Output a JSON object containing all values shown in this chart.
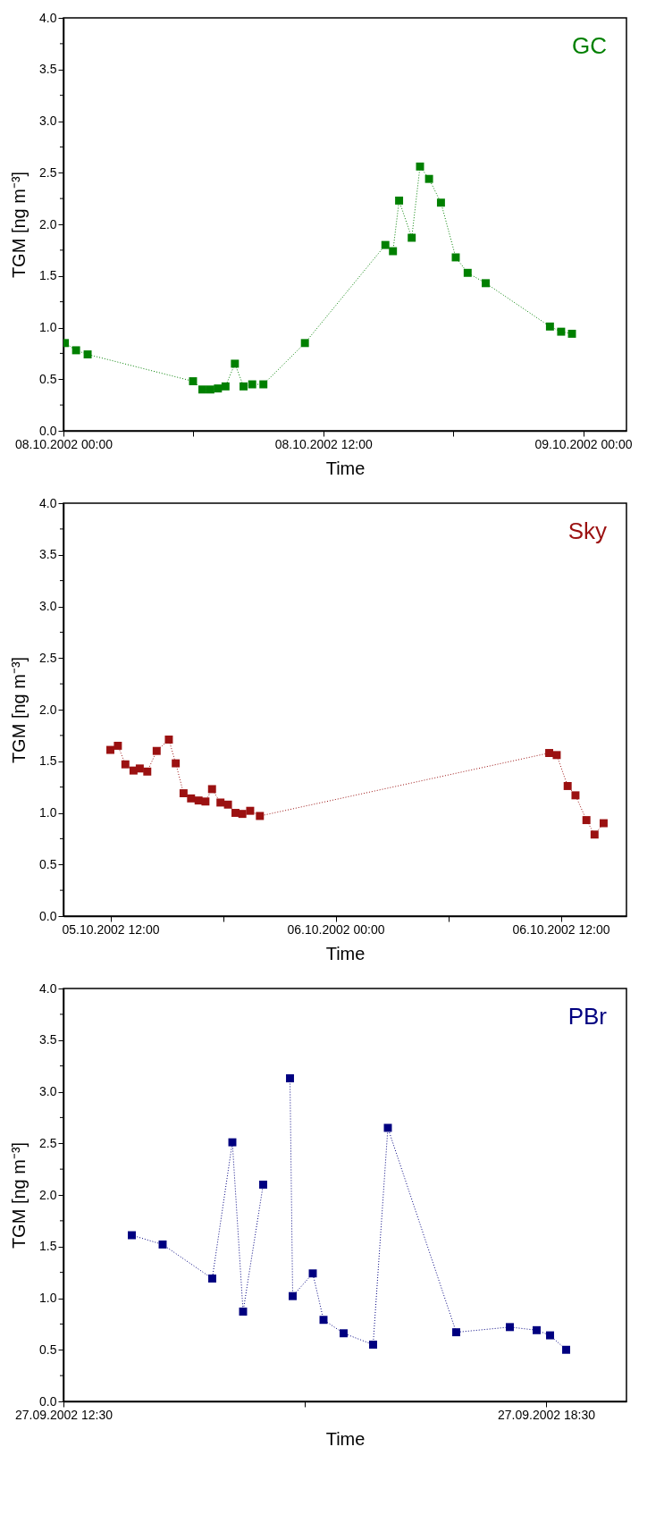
{
  "chart_data": [
    {
      "type": "line",
      "marker": "square",
      "line_style": "dotted",
      "legend": "top right",
      "xlabel": "Time",
      "ylabel": "TGM [ng m⁻³]",
      "xlim": [
        "2002-10-08T00:00",
        "2002-10-09T02:00"
      ],
      "xticks": [
        {
          "value": "2002-10-08T00:00",
          "label": "08.10.2002 00:00"
        },
        {
          "value": "2002-10-08T06:00",
          "label": null
        },
        {
          "value": "2002-10-08T12:00",
          "label": "08.10.2002 12:00"
        },
        {
          "value": "2002-10-08T18:00",
          "label": null
        },
        {
          "value": "2002-10-09T00:00",
          "label": "09.10.2002 00:00"
        }
      ],
      "ylim": [
        0,
        4
      ],
      "yticks": [
        {
          "value": 0,
          "label": "0.0"
        },
        {
          "value": 0.25,
          "label": null
        },
        0.5,
        {
          "value": 0.75,
          "label": null
        },
        {
          "value": 1,
          "label": "1.0"
        },
        {
          "value": 1.25,
          "label": null
        },
        1.5,
        {
          "value": 1.75,
          "label": null
        },
        {
          "value": 2,
          "label": "2.0"
        },
        {
          "value": 2.25,
          "label": null
        },
        2.5,
        {
          "value": 2.75,
          "label": null
        },
        {
          "value": 3,
          "label": "3.0"
        },
        {
          "value": 3.25,
          "label": null
        },
        3.5,
        {
          "value": 3.75,
          "label": null
        },
        {
          "value": 4,
          "label": "4.0"
        }
      ],
      "series": [
        {
          "name": "GC",
          "color": "#008000",
          "x": [
            "2002-10-08T00:04",
            "2002-10-08T00:35",
            "2002-10-08T01:07",
            "2002-10-08T05:59",
            "2002-10-08T06:25",
            "2002-10-08T06:47",
            "2002-10-08T07:08",
            "2002-10-08T07:29",
            "2002-10-08T07:55",
            "2002-10-08T08:19",
            "2002-10-08T08:43",
            "2002-10-08T09:14",
            "2002-10-08T11:09",
            "2002-10-08T14:52",
            "2002-10-08T15:13",
            "2002-10-08T15:30",
            "2002-10-08T16:05",
            "2002-10-08T16:28",
            "2002-10-08T16:53",
            "2002-10-08T17:26",
            "2002-10-08T18:07",
            "2002-10-08T18:40",
            "2002-10-08T19:30",
            "2002-10-08T22:28",
            "2002-10-08T22:59",
            "2002-10-08T23:29"
          ],
          "values": [
            0.85,
            0.78,
            0.74,
            0.48,
            0.4,
            0.4,
            0.41,
            0.43,
            0.65,
            0.43,
            0.45,
            0.45,
            0.85,
            1.8,
            1.74,
            2.23,
            1.87,
            2.56,
            2.44,
            2.21,
            1.68,
            1.53,
            1.43,
            1.01,
            0.96,
            0.94
          ]
        }
      ]
    },
    {
      "type": "line",
      "marker": "square",
      "line_style": "dotted",
      "legend": "top right",
      "xlabel": "Time",
      "ylabel": "TGM [ng m⁻³]",
      "xlim": [
        "2002-10-05T09:30",
        "2002-10-06T15:30"
      ],
      "xticks": [
        {
          "value": "2002-10-05T12:00",
          "label": "05.10.2002 12:00"
        },
        {
          "value": "2002-10-05T18:00",
          "label": null
        },
        {
          "value": "2002-10-06T00:00",
          "label": "06.10.2002 00:00"
        },
        {
          "value": "2002-10-06T06:00",
          "label": null
        },
        {
          "value": "2002-10-06T12:00",
          "label": "06.10.2002 12:00"
        }
      ],
      "ylim": [
        0,
        4
      ],
      "yticks": [
        {
          "value": 0,
          "label": "0.0"
        },
        {
          "value": 0.25,
          "label": null
        },
        0.5,
        {
          "value": 0.75,
          "label": null
        },
        {
          "value": 1,
          "label": "1.0"
        },
        {
          "value": 1.25,
          "label": null
        },
        1.5,
        {
          "value": 1.75,
          "label": null
        },
        {
          "value": 2,
          "label": "2.0"
        },
        {
          "value": 2.25,
          "label": null
        },
        2.5,
        {
          "value": 2.75,
          "label": null
        },
        {
          "value": 3,
          "label": "3.0"
        },
        {
          "value": 3.25,
          "label": null
        },
        3.5,
        {
          "value": 3.75,
          "label": null
        },
        {
          "value": 4,
          "label": "4.0"
        }
      ],
      "series": [
        {
          "name": "Sky",
          "color": "#9b1111",
          "x": [
            "2002-10-05T12:00",
            "2002-10-05T12:24",
            "2002-10-05T12:48",
            "2002-10-05T13:14",
            "2002-10-05T13:34",
            "2002-10-05T13:58",
            "2002-10-05T14:28",
            "2002-10-05T15:07",
            "2002-10-05T15:29",
            "2002-10-05T15:54",
            "2002-10-05T16:18",
            "2002-10-05T16:42",
            "2002-10-05T17:04",
            "2002-10-05T17:25",
            "2002-10-05T17:52",
            "2002-10-05T18:16",
            "2002-10-05T18:40",
            "2002-10-05T19:02",
            "2002-10-05T19:27",
            "2002-10-05T19:58",
            "2002-10-06T11:23",
            "2002-10-06T11:47",
            "2002-10-06T12:22",
            "2002-10-06T12:47",
            "2002-10-06T13:22",
            "2002-10-06T13:48",
            "2002-10-06T14:17"
          ],
          "values": [
            1.61,
            1.65,
            1.47,
            1.41,
            1.43,
            1.4,
            1.6,
            1.71,
            1.48,
            1.19,
            1.14,
            1.12,
            1.11,
            1.23,
            1.1,
            1.08,
            1.0,
            0.99,
            1.02,
            0.97,
            1.58,
            1.56,
            1.26,
            1.17,
            0.93,
            0.79,
            0.9
          ]
        }
      ]
    },
    {
      "type": "line",
      "marker": "square",
      "line_style": "dotted",
      "legend": "top right",
      "xlabel": "Time",
      "ylabel": "TGM [ng m⁻³]",
      "xlim": [
        "2002-09-27T12:30",
        "2002-09-27T19:30"
      ],
      "xticks": [
        {
          "value": "2002-09-27T12:30",
          "label": "27.09.2002 12:30"
        },
        {
          "value": "2002-09-27T15:30",
          "label": null
        },
        {
          "value": "2002-09-27T18:30",
          "label": "27.09.2002 18:30"
        }
      ],
      "ylim": [
        0,
        4
      ],
      "yticks": [
        {
          "value": 0,
          "label": "0.0"
        },
        {
          "value": 0.25,
          "label": null
        },
        0.5,
        {
          "value": 0.75,
          "label": null
        },
        {
          "value": 1,
          "label": "1.0"
        },
        {
          "value": 1.25,
          "label": null
        },
        1.5,
        {
          "value": 1.75,
          "label": null
        },
        {
          "value": 2,
          "label": "2.0"
        },
        {
          "value": 2.25,
          "label": null
        },
        2.5,
        {
          "value": 2.75,
          "label": null
        },
        {
          "value": 3,
          "label": "3.0"
        },
        {
          "value": 3.25,
          "label": null
        },
        3.5,
        {
          "value": 3.75,
          "label": null
        },
        {
          "value": 4,
          "label": "4.0"
        }
      ],
      "series": [
        {
          "name": "PBr",
          "color": "#000080",
          "x": [
            "2002-09-27T13:21",
            "2002-09-27T13:44",
            "2002-09-27T14:21",
            "2002-09-27T14:36",
            "2002-09-27T14:44",
            "2002-09-27T14:59",
            "2002-09-27T15:06",
            "2002-09-27T15:19",
            "2002-09-27T15:21",
            "2002-09-27T15:36",
            "2002-09-27T15:44",
            "2002-09-27T15:59",
            "2002-09-27T16:21",
            "2002-09-27T16:32",
            "2002-09-27T17:23",
            "2002-09-27T18:03",
            "2002-09-27T18:23",
            "2002-09-27T18:33",
            "2002-09-27T18:45"
          ],
          "values": [
            1.61,
            1.52,
            1.19,
            2.51,
            0.87,
            2.1,
            null,
            3.13,
            1.02,
            1.24,
            0.79,
            0.66,
            0.55,
            2.65,
            0.67,
            0.72,
            0.69,
            0.64,
            0.5
          ]
        }
      ]
    }
  ]
}
